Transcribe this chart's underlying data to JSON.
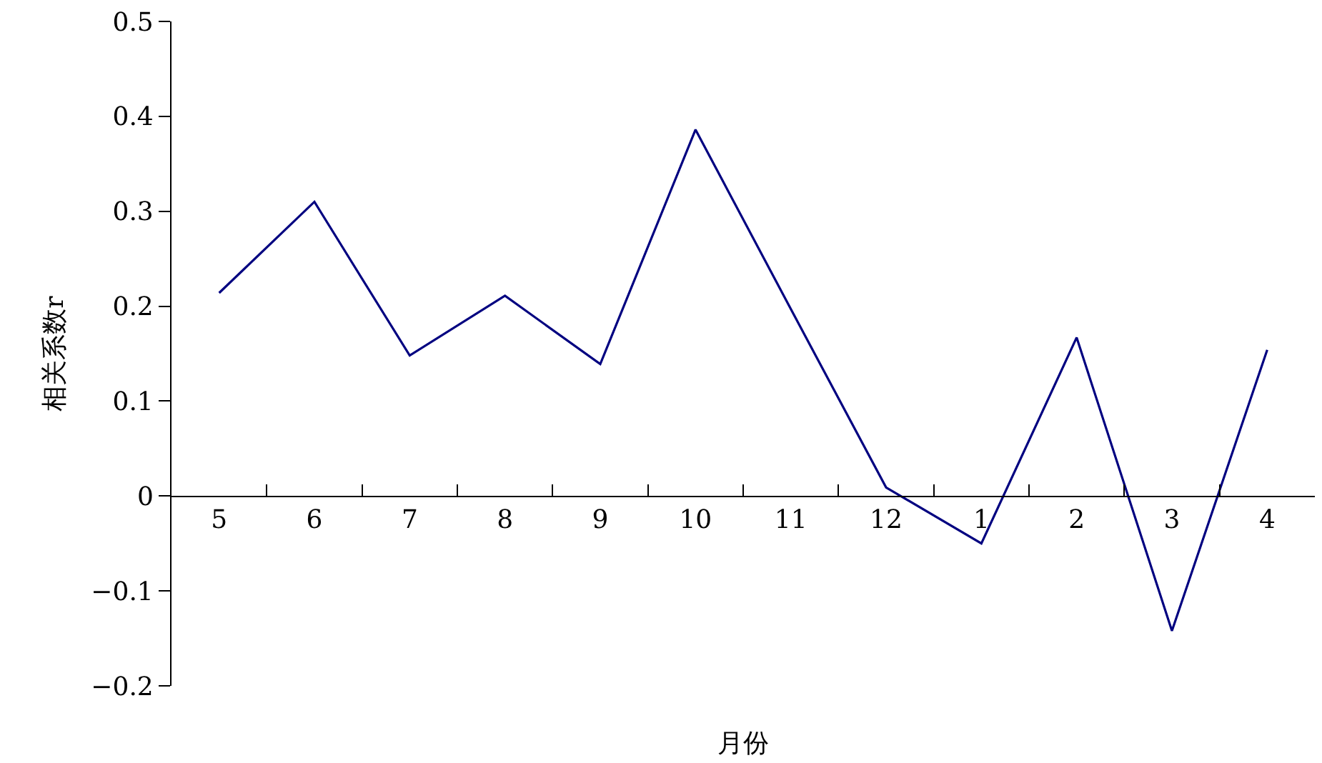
{
  "chart_data": {
    "type": "line",
    "xlabel": "月份",
    "ylabel": "相关系数r",
    "categories": [
      "5",
      "6",
      "7",
      "8",
      "9",
      "10",
      "11",
      "12",
      "1",
      "2",
      "3",
      "4"
    ],
    "series": [
      {
        "color": "#000080",
        "values": [
          0.214,
          0.31,
          0.148,
          0.211,
          0.139,
          0.386,
          0.197,
          0.009,
          -0.05,
          0.167,
          -0.142,
          0.154
        ]
      }
    ],
    "ylim": [
      -0.2,
      0.5
    ],
    "yticks": [
      -0.2,
      -0.1,
      0,
      0.1,
      0.2,
      0.3,
      0.4,
      0.5
    ],
    "grid": false,
    "marker": "none",
    "line_style": "solid"
  }
}
